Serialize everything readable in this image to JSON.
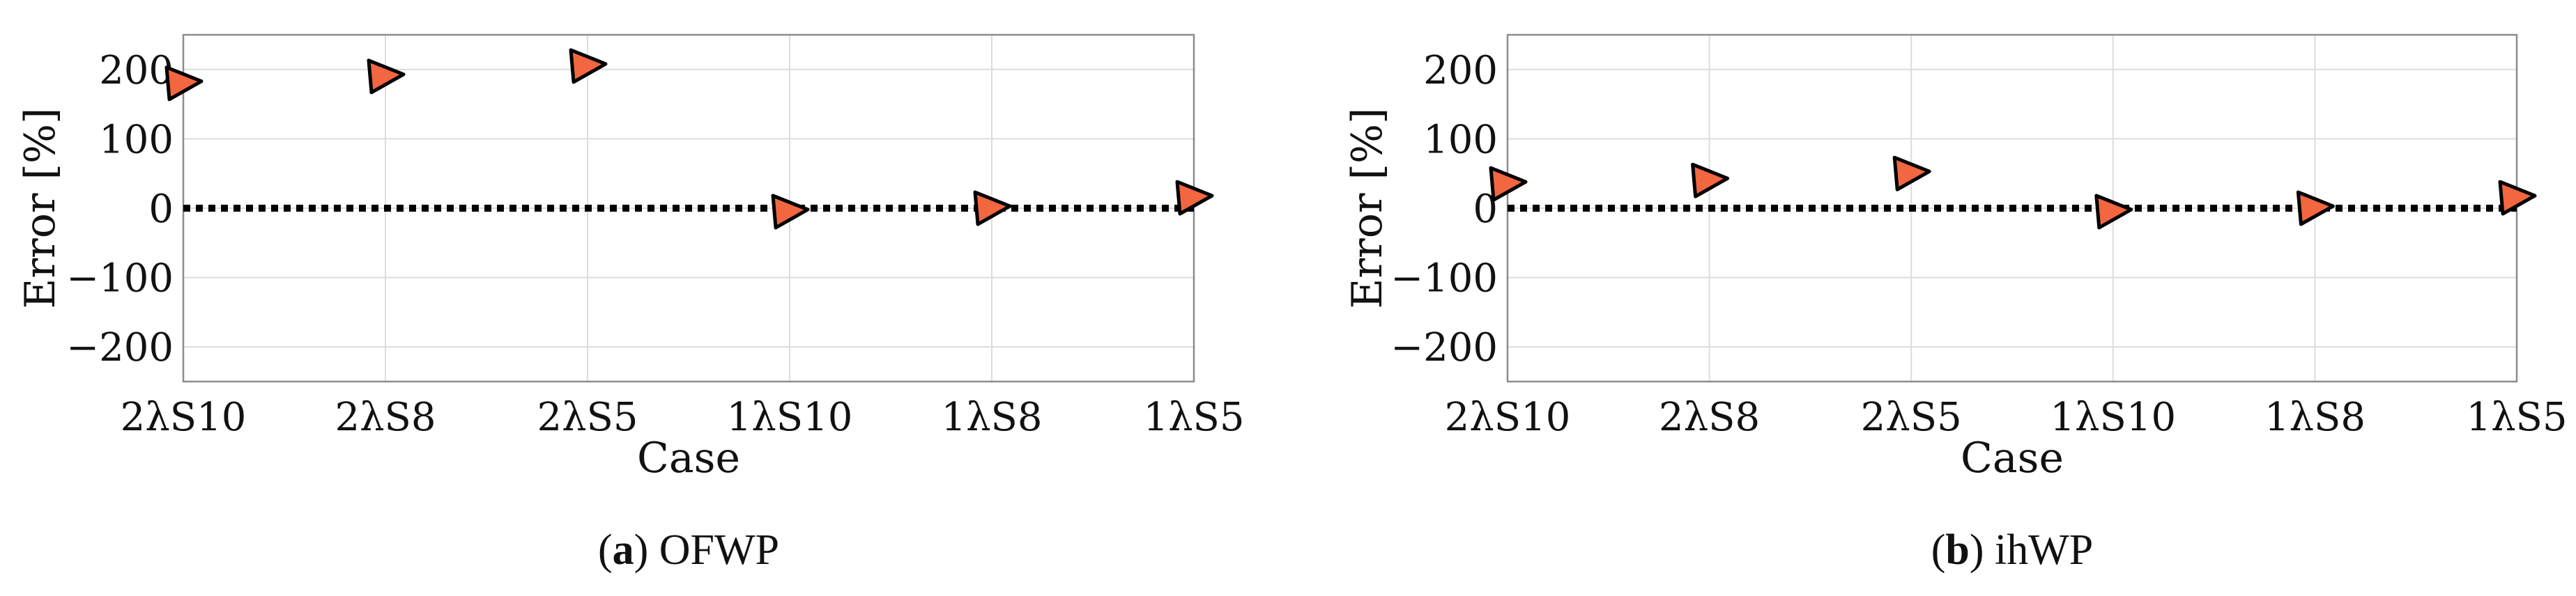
{
  "chart_data": [
    {
      "type": "scatter",
      "caption_letter": "a",
      "caption_title": "OFWP",
      "xlabel": "Case",
      "ylabel": "Error [%]",
      "categories": [
        "2λS10",
        "2λS8",
        "2λS5",
        "1λS10",
        "1λS8",
        "1λS5"
      ],
      "ylim": [
        -250,
        250
      ],
      "yticks": [
        200,
        100,
        0,
        -100,
        -200
      ],
      "ytick_labels": [
        "200",
        "100",
        "0",
        "−100",
        "−200"
      ],
      "grid": true,
      "reference_line": {
        "y": 0,
        "style": "dotted",
        "color": "#000000"
      },
      "marker": {
        "shape": "triangle-right",
        "fill": "#f26640",
        "stroke": "#000000"
      },
      "series": [
        {
          "values": [
            185,
            195,
            210,
            0,
            5,
            20
          ]
        }
      ]
    },
    {
      "type": "scatter",
      "caption_letter": "b",
      "caption_title": "ihWP",
      "xlabel": "Case",
      "ylabel": "Error [%]",
      "categories": [
        "2λS10",
        "2λS8",
        "2λS5",
        "1λS10",
        "1λS8",
        "1λS5"
      ],
      "ylim": [
        -250,
        250
      ],
      "yticks": [
        200,
        100,
        0,
        -100,
        -200
      ],
      "ytick_labels": [
        "200",
        "100",
        "0",
        "−100",
        "−200"
      ],
      "grid": true,
      "reference_line": {
        "y": 0,
        "style": "dotted",
        "color": "#000000"
      },
      "marker": {
        "shape": "triangle-right",
        "fill": "#f26640",
        "stroke": "#000000"
      },
      "series": [
        {
          "values": [
            40,
            45,
            55,
            0,
            5,
            20
          ]
        }
      ]
    }
  ]
}
